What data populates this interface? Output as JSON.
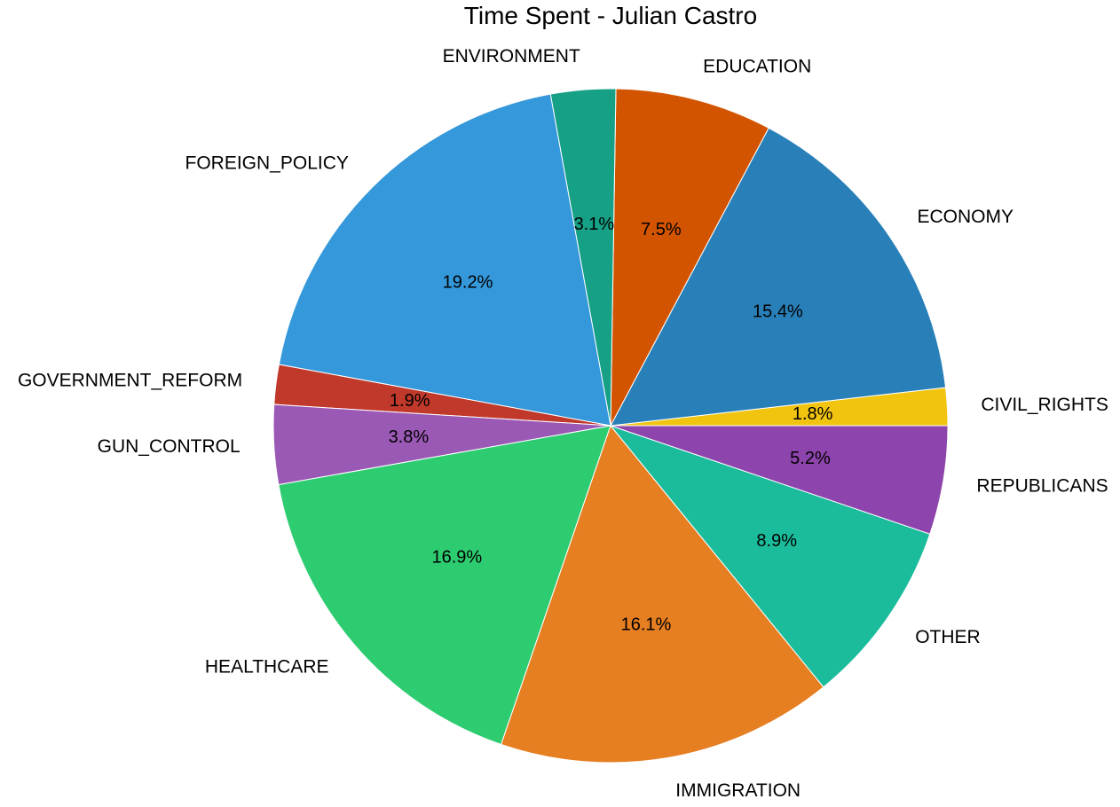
{
  "chart_data": {
    "type": "pie",
    "title": "Time Spent - Julian Castro",
    "start_angle_deg": 0,
    "direction": "counterclockwise",
    "slices": [
      {
        "label": "CIVIL_RIGHTS",
        "percent_label": "1.8%",
        "value": 1.8,
        "color": "#f1c40f"
      },
      {
        "label": "ECONOMY",
        "percent_label": "15.4%",
        "value": 15.4,
        "color": "#2980b9"
      },
      {
        "label": "EDUCATION",
        "percent_label": "7.5%",
        "value": 7.5,
        "color": "#d35400"
      },
      {
        "label": "ENVIRONMENT",
        "percent_label": "3.1%",
        "value": 3.1,
        "color": "#16a085"
      },
      {
        "label": "FOREIGN_POLICY",
        "percent_label": "19.2%",
        "value": 19.2,
        "color": "#3498db"
      },
      {
        "label": "GOVERNMENT_REFORM",
        "percent_label": "1.9%",
        "value": 1.9,
        "color": "#c0392b"
      },
      {
        "label": "GUN_CONTROL",
        "percent_label": "3.8%",
        "value": 3.8,
        "color": "#9b59b6"
      },
      {
        "label": "HEALTHCARE",
        "percent_label": "16.9%",
        "value": 16.9,
        "color": "#2ecc71"
      },
      {
        "label": "IMMIGRATION",
        "percent_label": "16.1%",
        "value": 16.1,
        "color": "#e67e22"
      },
      {
        "label": "OTHER",
        "percent_label": "8.9%",
        "value": 8.9,
        "color": "#1abc9c"
      },
      {
        "label": "REPUBLICANS",
        "percent_label": "5.2%",
        "value": 5.2,
        "color": "#8e44ad"
      }
    ]
  }
}
